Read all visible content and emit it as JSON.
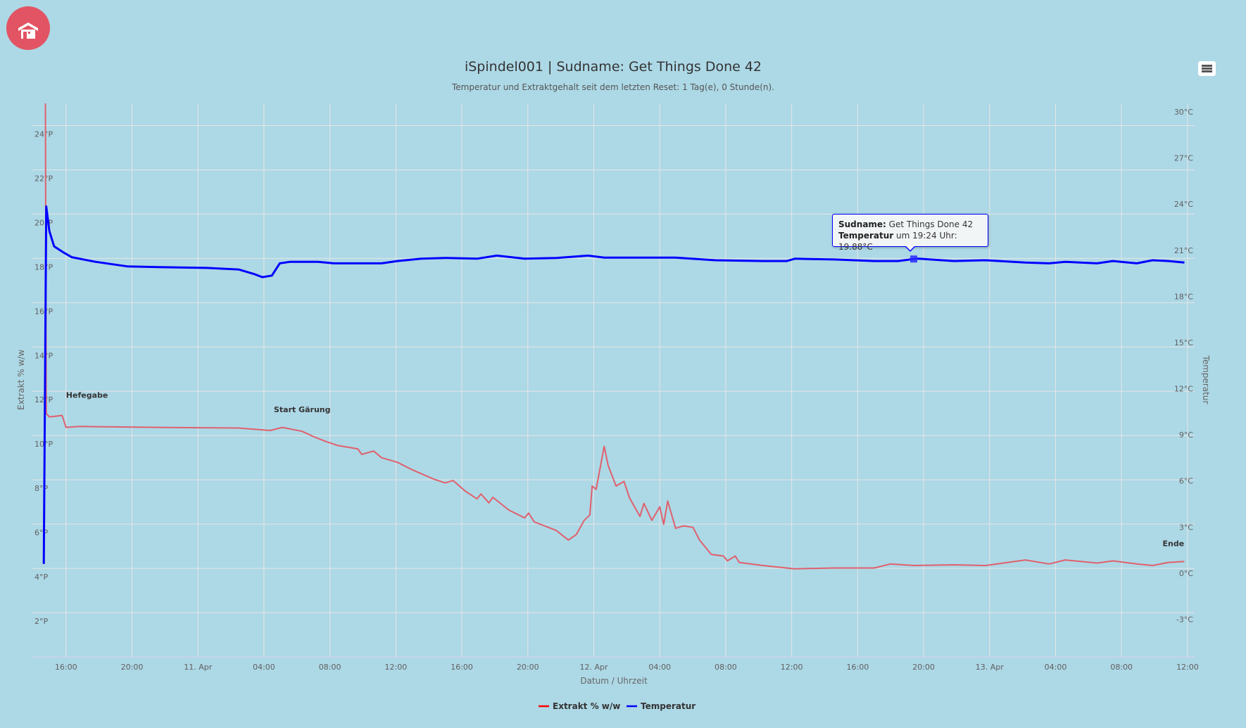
{
  "home_button": {
    "icon": "home-icon"
  },
  "menu_button": {
    "icon": "hamburger-icon"
  },
  "chart_data": {
    "type": "line",
    "title": "iSpindel001 | Sudname: Get Things Done 42",
    "subtitle": "Temperatur und Extraktgehalt seit dem letzten Reset: 1 Tag(e), 0 Stunde(n).",
    "xlabel": "Datum / Uhrzeit",
    "x_unit": "hours since 10 Apr 00:00",
    "xlim": [
      13.96,
      84.43
    ],
    "x_ticks": [
      {
        "x": 16,
        "label": "16:00"
      },
      {
        "x": 20,
        "label": "20:00"
      },
      {
        "x": 24,
        "label": "11. Apr"
      },
      {
        "x": 28,
        "label": "04:00"
      },
      {
        "x": 32,
        "label": "08:00"
      },
      {
        "x": 36,
        "label": "12:00"
      },
      {
        "x": 40,
        "label": "16:00"
      },
      {
        "x": 44,
        "label": "20:00"
      },
      {
        "x": 48,
        "label": "12. Apr"
      },
      {
        "x": 52,
        "label": "04:00"
      },
      {
        "x": 56,
        "label": "08:00"
      },
      {
        "x": 60,
        "label": "12:00"
      },
      {
        "x": 64,
        "label": "16:00"
      },
      {
        "x": 68,
        "label": "20:00"
      },
      {
        "x": 72,
        "label": "13. Apr"
      },
      {
        "x": 76,
        "label": "04:00"
      },
      {
        "x": 80,
        "label": "08:00"
      },
      {
        "x": 84,
        "label": "12:00"
      }
    ],
    "y_left": {
      "label": "Extrakt % w/w",
      "ylim": [
        0,
        25
      ],
      "ticks": [
        {
          "v": 2,
          "label": "2°P"
        },
        {
          "v": 4,
          "label": "4°P"
        },
        {
          "v": 6,
          "label": "6°P"
        },
        {
          "v": 8,
          "label": "8°P"
        },
        {
          "v": 10,
          "label": "10°P"
        },
        {
          "v": 12,
          "label": "12°P"
        },
        {
          "v": 14,
          "label": "14°P"
        },
        {
          "v": 16,
          "label": "16°P"
        },
        {
          "v": 18,
          "label": "18°P"
        },
        {
          "v": 20,
          "label": "20°P"
        },
        {
          "v": 22,
          "label": "22°P"
        },
        {
          "v": 24,
          "label": "24°P"
        }
      ]
    },
    "y_right": {
      "label": "Temperatur",
      "ylim": [
        -6,
        30
      ],
      "ticks": [
        {
          "v": -3,
          "label": "-3°C"
        },
        {
          "v": 0,
          "label": "0°C"
        },
        {
          "v": 3,
          "label": "3°C"
        },
        {
          "v": 6,
          "label": "6°C"
        },
        {
          "v": 9,
          "label": "9°C"
        },
        {
          "v": 12,
          "label": "12°C"
        },
        {
          "v": 15,
          "label": "15°C"
        },
        {
          "v": 18,
          "label": "18°C"
        },
        {
          "v": 21,
          "label": "21°C"
        },
        {
          "v": 24,
          "label": "24°C"
        },
        {
          "v": 27,
          "label": "27°C"
        },
        {
          "v": 30,
          "label": "30°C"
        }
      ]
    },
    "grid": true,
    "legend_position": "bottom-center",
    "series": [
      {
        "name": "Extrakt % w/w",
        "axis": "left",
        "color": "#e0606c",
        "legend_color": "#ff0000",
        "points": [
          [
            14.75,
            25.0
          ],
          [
            14.8,
            11.0
          ],
          [
            14.99,
            10.84
          ],
          [
            15.76,
            10.91
          ],
          [
            16.0,
            10.37
          ],
          [
            16.82,
            10.41
          ],
          [
            21.64,
            10.37
          ],
          [
            26.46,
            10.34
          ],
          [
            28.39,
            10.23
          ],
          [
            29.11,
            10.37
          ],
          [
            30.31,
            10.19
          ],
          [
            31.04,
            9.94
          ],
          [
            31.76,
            9.73
          ],
          [
            32.48,
            9.55
          ],
          [
            33.69,
            9.4
          ],
          [
            33.93,
            9.15
          ],
          [
            34.65,
            9.3
          ],
          [
            35.13,
            9.0
          ],
          [
            36.1,
            8.79
          ],
          [
            37.06,
            8.43
          ],
          [
            38.27,
            8.04
          ],
          [
            38.99,
            7.86
          ],
          [
            39.47,
            7.97
          ],
          [
            40.19,
            7.5
          ],
          [
            40.92,
            7.14
          ],
          [
            41.16,
            7.36
          ],
          [
            41.64,
            6.96
          ],
          [
            41.88,
            7.21
          ],
          [
            42.84,
            6.64
          ],
          [
            43.81,
            6.28
          ],
          [
            44.05,
            6.5
          ],
          [
            44.39,
            6.1
          ],
          [
            44.77,
            5.99
          ],
          [
            45.73,
            5.71
          ],
          [
            46.46,
            5.28
          ],
          [
            46.94,
            5.53
          ],
          [
            47.42,
            6.17
          ],
          [
            47.76,
            6.42
          ],
          [
            47.9,
            7.72
          ],
          [
            48.14,
            7.57
          ],
          [
            48.63,
            9.51
          ],
          [
            48.87,
            8.65
          ],
          [
            49.35,
            7.72
          ],
          [
            49.83,
            7.93
          ],
          [
            50.17,
            7.18
          ],
          [
            50.8,
            6.35
          ],
          [
            51.04,
            6.93
          ],
          [
            51.52,
            6.17
          ],
          [
            52.0,
            6.78
          ],
          [
            52.24,
            5.99
          ],
          [
            52.48,
            7.04
          ],
          [
            52.96,
            5.81
          ],
          [
            53.45,
            5.92
          ],
          [
            54.02,
            5.85
          ],
          [
            54.41,
            5.28
          ],
          [
            55.13,
            4.63
          ],
          [
            55.86,
            4.56
          ],
          [
            56.1,
            4.34
          ],
          [
            56.58,
            4.56
          ],
          [
            56.82,
            4.27
          ],
          [
            58.27,
            4.13
          ],
          [
            60.19,
            3.98
          ],
          [
            62.6,
            4.02
          ],
          [
            65.01,
            4.02
          ],
          [
            65.98,
            4.2
          ],
          [
            67.42,
            4.13
          ],
          [
            69.83,
            4.16
          ],
          [
            71.76,
            4.13
          ],
          [
            74.17,
            4.38
          ],
          [
            75.61,
            4.2
          ],
          [
            76.58,
            4.38
          ],
          [
            78.51,
            4.24
          ],
          [
            79.47,
            4.34
          ],
          [
            80.92,
            4.2
          ],
          [
            81.88,
            4.13
          ],
          [
            82.84,
            4.27
          ],
          [
            83.81,
            4.31
          ]
        ]
      },
      {
        "name": "Temperatur",
        "axis": "right",
        "color": "#0000ff",
        "legend_color": "#0000ff",
        "points": [
          [
            14.65,
            0.05
          ],
          [
            14.8,
            23.3
          ],
          [
            14.99,
            21.7
          ],
          [
            15.28,
            20.7
          ],
          [
            15.86,
            20.3
          ],
          [
            16.34,
            20.0
          ],
          [
            17.78,
            19.7
          ],
          [
            19.71,
            19.4
          ],
          [
            21.64,
            19.35
          ],
          [
            24.53,
            19.3
          ],
          [
            26.46,
            19.2
          ],
          [
            27.42,
            18.9
          ],
          [
            27.9,
            18.7
          ],
          [
            28.48,
            18.8
          ],
          [
            28.96,
            19.6
          ],
          [
            29.59,
            19.7
          ],
          [
            31.28,
            19.7
          ],
          [
            32.24,
            19.6
          ],
          [
            35.13,
            19.6
          ],
          [
            36.1,
            19.75
          ],
          [
            37.54,
            19.9
          ],
          [
            38.99,
            19.95
          ],
          [
            40.92,
            19.9
          ],
          [
            42.12,
            20.1
          ],
          [
            43.81,
            19.9
          ],
          [
            45.73,
            19.95
          ],
          [
            47.66,
            20.1
          ],
          [
            48.63,
            19.97
          ],
          [
            50.55,
            19.97
          ],
          [
            52.96,
            19.97
          ],
          [
            55.37,
            19.8
          ],
          [
            58.27,
            19.75
          ],
          [
            59.71,
            19.75
          ],
          [
            60.19,
            19.9
          ],
          [
            62.6,
            19.85
          ],
          [
            65.01,
            19.75
          ],
          [
            66.46,
            19.75
          ],
          [
            67.4,
            19.88
          ],
          [
            67.7,
            19.9
          ],
          [
            69.83,
            19.75
          ],
          [
            71.76,
            19.8
          ],
          [
            74.17,
            19.65
          ],
          [
            75.61,
            19.6
          ],
          [
            76.58,
            19.7
          ],
          [
            78.51,
            19.6
          ],
          [
            79.47,
            19.75
          ],
          [
            80.92,
            19.6
          ],
          [
            81.88,
            19.8
          ],
          [
            82.84,
            19.75
          ],
          [
            83.81,
            19.65
          ]
        ]
      }
    ],
    "annotations": [
      {
        "text": "Hefegabe",
        "x": 16.0,
        "y": 11.7
      },
      {
        "text": "Start Gärung",
        "x": 28.6,
        "y": 11.05
      },
      {
        "text": "Ende",
        "x": 83.8,
        "y": 5.0
      }
    ],
    "tooltip": {
      "x": 67.4,
      "y": 19.88,
      "label1": "Sudname:",
      "value1": " Get Things Done 42",
      "label2": "Temperatur",
      "value2": " um 19:24 Uhr: 19.88°C"
    }
  }
}
